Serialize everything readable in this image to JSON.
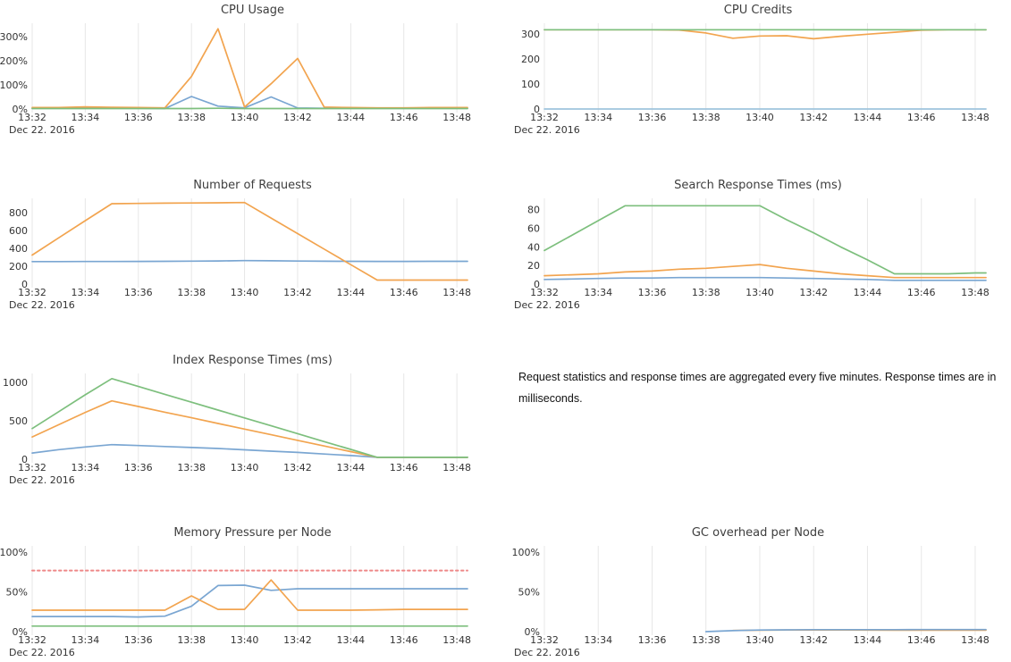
{
  "caption": {
    "text": "Request statistics and response times are aggregated every five minutes. Response times are in milliseconds."
  },
  "palette": {
    "blue": "#7aa6d2",
    "orange": "#f2a44f",
    "green": "#7dbf7d",
    "red_dashed": "#ee8888",
    "gridline": "#e7e7e7",
    "tick_text": "#333333",
    "title_text": "#3e3e3e"
  },
  "chart_data": [
    {
      "id": "cpu-usage",
      "type": "line",
      "title": "CPU Usage",
      "date_label": "Dec 22. 2016",
      "x_tick_labels": [
        "13:32",
        "13:34",
        "13:36",
        "13:38",
        "13:40",
        "13:42",
        "13:44",
        "13:46",
        "13:48"
      ],
      "x_minutes": [
        32,
        33,
        34,
        35,
        36,
        37,
        38,
        39,
        40,
        41,
        42,
        43,
        44,
        45,
        46,
        47,
        48
      ],
      "ylim": [
        0,
        356
      ],
      "y_ticks": [
        {
          "value": 0,
          "label": "0%"
        },
        {
          "value": 100,
          "label": "100%"
        },
        {
          "value": 200,
          "label": "200%"
        },
        {
          "value": 300,
          "label": "300%"
        }
      ],
      "series": [
        {
          "color_name": "blue",
          "color": "#7aa6d2",
          "values": [
            3,
            3,
            4,
            3,
            3,
            2,
            52,
            12,
            5,
            50,
            4,
            3,
            3,
            3,
            3,
            3,
            3
          ]
        },
        {
          "color_name": "orange",
          "color": "#f2a44f",
          "values": [
            6,
            6,
            9,
            7,
            6,
            5,
            135,
            333,
            8,
            105,
            210,
            8,
            6,
            5,
            5,
            6,
            6
          ]
        },
        {
          "color_name": "green",
          "color": "#7dbf7d",
          "values": [
            2,
            2,
            2,
            2,
            2,
            2,
            2,
            3,
            2,
            2,
            2,
            2,
            2,
            2,
            2,
            2,
            2
          ]
        }
      ]
    },
    {
      "id": "cpu-credits",
      "type": "line",
      "title": "CPU Credits",
      "date_label": "Dec 22. 2016",
      "x_tick_labels": [
        "13:32",
        "13:34",
        "13:36",
        "13:38",
        "13:40",
        "13:42",
        "13:44",
        "13:46",
        "13:48"
      ],
      "x_minutes": [
        32,
        33,
        34,
        35,
        36,
        37,
        38,
        39,
        40,
        41,
        42,
        43,
        44,
        45,
        46,
        47,
        48
      ],
      "ylim": [
        0,
        343
      ],
      "y_ticks": [
        {
          "value": 0,
          "label": "0"
        },
        {
          "value": 100,
          "label": "100"
        },
        {
          "value": 200,
          "label": "200"
        },
        {
          "value": 300,
          "label": "300"
        }
      ],
      "series": [
        {
          "color_name": "blue",
          "color": "#9fc4dd",
          "values": [
            0,
            0,
            0,
            0,
            0,
            0,
            0,
            0,
            0,
            0,
            0,
            0,
            0,
            0,
            0,
            0,
            0
          ]
        },
        {
          "color_name": "orange",
          "color": "#f2a44f",
          "values": [
            317,
            317,
            317,
            317,
            317,
            316,
            304,
            283,
            292,
            293,
            281,
            291,
            299,
            307,
            315,
            317,
            317
          ]
        },
        {
          "color_name": "green",
          "color": "#7dbf7d",
          "values": [
            317,
            317,
            317,
            317,
            317,
            317,
            317,
            317,
            317,
            317,
            317,
            317,
            317,
            317,
            317,
            317,
            317
          ]
        }
      ]
    },
    {
      "id": "number-of-requests",
      "type": "line",
      "title": "Number of Requests",
      "date_label": "Dec 22. 2016",
      "x_tick_labels": [
        "13:32",
        "13:34",
        "13:36",
        "13:38",
        "13:40",
        "13:42",
        "13:44",
        "13:46",
        "13:48"
      ],
      "x_minutes": [
        32,
        33,
        34,
        35,
        36,
        37,
        38,
        39,
        40,
        41,
        42,
        43,
        44,
        45,
        46,
        47,
        48
      ],
      "ylim": [
        0,
        960
      ],
      "y_ticks": [
        {
          "value": 0,
          "label": "0"
        },
        {
          "value": 200,
          "label": "200"
        },
        {
          "value": 400,
          "label": "400"
        },
        {
          "value": 600,
          "label": "600"
        },
        {
          "value": 800,
          "label": "800"
        }
      ],
      "series": [
        {
          "color_name": "blue",
          "color": "#7aa6d2",
          "values": [
            252,
            252,
            253,
            253,
            254,
            255,
            257,
            259,
            263,
            261,
            258,
            256,
            255,
            254,
            254,
            255,
            255
          ]
        },
        {
          "color_name": "orange",
          "color": "#f2a44f",
          "values": [
            325,
            518,
            710,
            900,
            903,
            906,
            908,
            910,
            913,
            739,
            565,
            392,
            218,
            45,
            45,
            45,
            45
          ]
        }
      ]
    },
    {
      "id": "search-response-times",
      "type": "line",
      "title": "Search Response Times (ms)",
      "date_label": "Dec 22. 2016",
      "x_tick_labels": [
        "13:32",
        "13:34",
        "13:36",
        "13:38",
        "13:40",
        "13:42",
        "13:44",
        "13:46",
        "13:48"
      ],
      "x_minutes": [
        32,
        33,
        34,
        35,
        36,
        37,
        38,
        39,
        40,
        41,
        42,
        43,
        44,
        45,
        46,
        47,
        48
      ],
      "ylim": [
        0,
        92
      ],
      "y_ticks": [
        {
          "value": 0,
          "label": "0"
        },
        {
          "value": 20,
          "label": "20"
        },
        {
          "value": 40,
          "label": "40"
        },
        {
          "value": 60,
          "label": "60"
        },
        {
          "value": 80,
          "label": "80"
        }
      ],
      "series": [
        {
          "color_name": "blue",
          "color": "#7aa6d2",
          "values": [
            5,
            5.5,
            6,
            6.5,
            6.5,
            7,
            7,
            7,
            7,
            6.5,
            6,
            5.5,
            5,
            4,
            4,
            4,
            4
          ]
        },
        {
          "color_name": "orange",
          "color": "#f2a44f",
          "values": [
            9,
            10,
            11,
            13,
            14,
            16,
            17,
            19,
            21,
            17,
            14,
            11,
            9,
            7,
            7,
            7,
            7
          ]
        },
        {
          "color_name": "green",
          "color": "#7dbf7d",
          "values": [
            36,
            52,
            68,
            84,
            84,
            84,
            84,
            84,
            84,
            69,
            55,
            40,
            26,
            11,
            11,
            11,
            12
          ]
        }
      ]
    },
    {
      "id": "index-response-times",
      "type": "line",
      "title": "Index Response Times (ms)",
      "date_label": "Dec 22. 2016",
      "x_tick_labels": [
        "13:32",
        "13:34",
        "13:36",
        "13:38",
        "13:40",
        "13:42",
        "13:44",
        "13:46",
        "13:48"
      ],
      "x_minutes": [
        32,
        33,
        34,
        35,
        36,
        37,
        38,
        39,
        40,
        41,
        42,
        43,
        44,
        45,
        46,
        47,
        48
      ],
      "ylim": [
        0,
        1118
      ],
      "y_ticks": [
        {
          "value": 0,
          "label": "0"
        },
        {
          "value": 500,
          "label": "500"
        },
        {
          "value": 1000,
          "label": "1000"
        }
      ],
      "series": [
        {
          "color_name": "blue",
          "color": "#7aa6d2",
          "values": [
            80,
            125,
            160,
            190,
            178,
            165,
            152,
            140,
            122,
            105,
            88,
            68,
            48,
            25,
            25,
            25,
            25
          ]
        },
        {
          "color_name": "orange",
          "color": "#f2a44f",
          "values": [
            290,
            450,
            610,
            760,
            687,
            613,
            540,
            466,
            393,
            319,
            246,
            172,
            99,
            25,
            25,
            25,
            25
          ]
        },
        {
          "color_name": "green",
          "color": "#7dbf7d",
          "values": [
            400,
            620,
            840,
            1050,
            948,
            845,
            743,
            640,
            538,
            435,
            333,
            230,
            128,
            25,
            25,
            25,
            25
          ]
        }
      ]
    },
    {
      "id": "memory-pressure-per-node",
      "type": "line",
      "title": "Memory Pressure per Node",
      "date_label": "Dec 22. 2016",
      "x_tick_labels": [
        "13:32",
        "13:34",
        "13:36",
        "13:38",
        "13:40",
        "13:42",
        "13:44",
        "13:46",
        "13:48"
      ],
      "x_minutes": [
        32,
        33,
        34,
        35,
        36,
        37,
        38,
        39,
        40,
        41,
        42,
        43,
        44,
        45,
        46,
        47,
        48
      ],
      "ylim": [
        0,
        108
      ],
      "y_ticks": [
        {
          "value": 0,
          "label": "0%"
        },
        {
          "value": 50,
          "label": "50%"
        },
        {
          "value": 100,
          "label": "100%"
        }
      ],
      "series": [
        {
          "color_name": "blue",
          "color": "#7aa6d2",
          "values": [
            19,
            19,
            19,
            19,
            18.5,
            19.5,
            32,
            58,
            58.5,
            52,
            54,
            54,
            54,
            54,
            54,
            54,
            54
          ]
        },
        {
          "color_name": "orange",
          "color": "#f2a44f",
          "values": [
            27,
            27,
            27,
            27,
            27,
            27,
            45,
            28,
            28,
            65,
            27,
            27,
            27,
            27.5,
            28,
            28,
            28
          ]
        },
        {
          "color_name": "green",
          "color": "#7dbf7d",
          "values": [
            7,
            7,
            7,
            7,
            7,
            7,
            7,
            7,
            7,
            7,
            7,
            7,
            7,
            7,
            7,
            7,
            7
          ]
        },
        {
          "color_name": "red-threshold",
          "color": "#ee8888",
          "dash": true,
          "values": [
            77,
            77,
            77,
            77,
            77,
            77,
            77,
            77,
            77,
            77,
            77,
            77,
            77,
            77,
            77,
            77,
            77
          ]
        }
      ]
    },
    {
      "id": "gc-overhead-per-node",
      "type": "line",
      "title": "GC overhead per Node",
      "date_label": "Dec 22. 2016",
      "x_tick_labels": [
        "13:32",
        "13:34",
        "13:36",
        "13:38",
        "13:40",
        "13:42",
        "13:44",
        "13:46",
        "13:48"
      ],
      "x_minutes": [
        32,
        33,
        34,
        35,
        36,
        37,
        38,
        39,
        40,
        41,
        42,
        43,
        44,
        45,
        46,
        47,
        48
      ],
      "ylim": [
        0,
        108
      ],
      "y_ticks": [
        {
          "value": 0,
          "label": "0%"
        },
        {
          "value": 50,
          "label": "50%"
        },
        {
          "value": 100,
          "label": "100%"
        }
      ],
      "series": [
        {
          "color_name": "orange",
          "color": "#f2a44f",
          "values": [
            null,
            null,
            null,
            null,
            null,
            null,
            null,
            1.5,
            1.8,
            2,
            2.1,
            2.1,
            1.9,
            1.8,
            1.8,
            1.8,
            1.8
          ]
        },
        {
          "color_name": "blue",
          "color": "#7aa6d2",
          "values": [
            null,
            null,
            null,
            null,
            null,
            null,
            0,
            1.2,
            2,
            2.3,
            2.5,
            2.5,
            2.5,
            2.5,
            2.6,
            2.6,
            2.6
          ]
        }
      ]
    }
  ]
}
